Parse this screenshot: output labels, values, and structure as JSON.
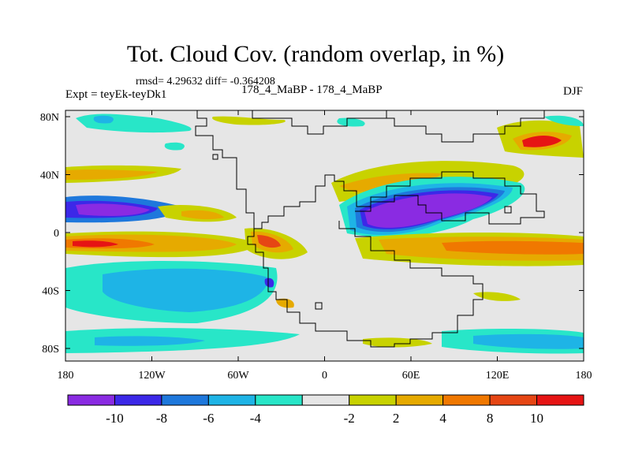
{
  "title": "Tot. Cloud Cov. (random overlap, in %)",
  "stats": "rmsd= 4.29632 diff= -0.364208",
  "expt": "Expt = teyEk-teyDk1",
  "period": "178_4_MaBP - 178_4_MaBP",
  "season": "DJF",
  "axes": {
    "x_ticks": [
      "180",
      "120W",
      "60W",
      "0",
      "60E",
      "120E",
      "180"
    ],
    "y_ticks": [
      "80N",
      "40N",
      "0",
      "40S",
      "80S"
    ]
  },
  "colorbar": {
    "colors": [
      "#8a2be2",
      "#3c28e8",
      "#1e78dc",
      "#1eb4e6",
      "#28e6c8",
      "#e6e6e6",
      "#c8d200",
      "#e6aa00",
      "#f07800",
      "#e64614",
      "#e61414"
    ],
    "labels": [
      "-10",
      "-8",
      "-6",
      "-4",
      "-2",
      "2",
      "4",
      "8",
      "10"
    ]
  },
  "colors": {
    "background": "#e6e6e6",
    "coastline": "#000000"
  }
}
